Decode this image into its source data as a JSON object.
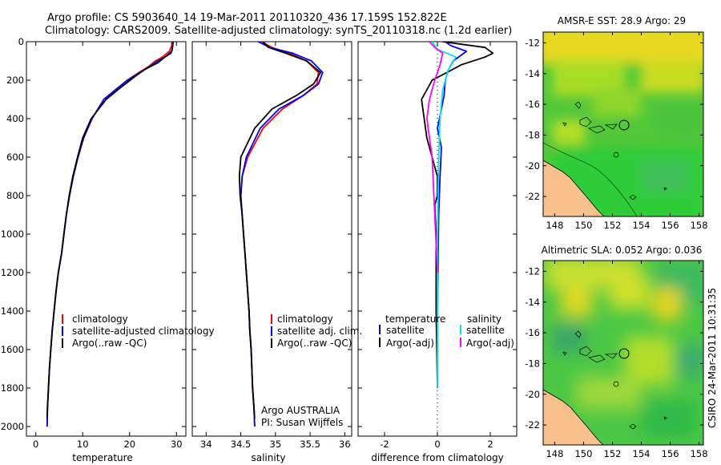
{
  "figure": {
    "title_line1": "Argo profile: CS 5903640_14 19-Mar-2011 20110320_436 17.159S 152.822E",
    "title_line2": "Climatology: CARS2009. Satellite-adjusted climatology: synTS_20110318.nc (1.2d earlier)",
    "side_label": "CSIRO 24-Mar-2011 10:31:35",
    "argo_note_line1": "Argo AUSTRALIA",
    "argo_note_line2": "PI: Susan Wijffels"
  },
  "colors": {
    "climatology": "#ff0000",
    "satellite": "#0000ff",
    "argo": "#000000",
    "sal_satellite": "#00e5e5",
    "sal_argo": "#ff00ff",
    "land": "#f7c08c",
    "coast": "#000000"
  },
  "chart_data": [
    {
      "type": "line",
      "xlabel": "temperature",
      "ylabel": "",
      "xlim": [
        -2,
        32
      ],
      "ylim": [
        2050,
        0
      ],
      "xticks": [
        0,
        10,
        20,
        30
      ],
      "yticks": [
        0,
        200,
        400,
        600,
        800,
        1000,
        1200,
        1400,
        1600,
        1800,
        2000
      ],
      "legend": [
        "climatology",
        "satellite-adjusted climatology",
        "Argo(..raw -QC)"
      ],
      "legend_position": "bottom-right",
      "series": [
        {
          "name": "climatology",
          "color_key": "climatology",
          "x": [
            29.0,
            29.0,
            28.5,
            27.0,
            25.5,
            24.0,
            22.0,
            19.5,
            17.0,
            14.5,
            12.0,
            10.2,
            9.0,
            8.0,
            7.2,
            6.5,
            6.0,
            5.5,
            4.8,
            4.3,
            3.9,
            3.5,
            3.2,
            2.9,
            2.7,
            2.5,
            2.4
          ],
          "y": [
            0,
            20,
            50,
            80,
            100,
            130,
            160,
            200,
            250,
            300,
            400,
            500,
            600,
            700,
            800,
            900,
            1000,
            1100,
            1200,
            1300,
            1400,
            1500,
            1600,
            1700,
            1800,
            1900,
            2000
          ]
        },
        {
          "name": "satellite-adjusted climatology",
          "color_key": "satellite",
          "x": [
            29.3,
            29.2,
            29.0,
            27.6,
            26.0,
            24.3,
            22.2,
            19.6,
            17.0,
            14.5,
            12.0,
            10.2,
            9.0,
            8.0,
            7.2,
            6.5,
            6.0,
            5.5,
            4.8,
            4.3,
            3.9,
            3.5,
            3.2,
            2.9,
            2.7,
            2.5,
            2.4
          ],
          "y": [
            0,
            20,
            50,
            80,
            100,
            130,
            160,
            200,
            250,
            300,
            400,
            500,
            600,
            700,
            800,
            900,
            1000,
            1100,
            1200,
            1300,
            1400,
            1500,
            1600,
            1700,
            1800,
            1900,
            2000
          ]
        },
        {
          "name": "Argo(..raw -QC)",
          "color_key": "argo",
          "x": [
            29.2,
            29.2,
            29.1,
            28.8,
            27.5,
            26.0,
            23.5,
            21.2,
            18.0,
            15.0,
            11.8,
            10.0,
            8.9,
            7.9,
            7.1,
            6.5,
            6.0,
            5.5,
            4.8,
            4.3,
            3.9,
            3.5,
            3.2,
            2.9,
            2.7,
            2.5,
            2.4
          ],
          "y": [
            0,
            20,
            40,
            60,
            80,
            110,
            140,
            180,
            240,
            300,
            400,
            500,
            600,
            700,
            800,
            900,
            1000,
            1100,
            1200,
            1300,
            1400,
            1500,
            1600,
            1700,
            1800,
            1900,
            1960
          ]
        }
      ]
    },
    {
      "type": "line",
      "xlabel": "salinity",
      "ylabel": "",
      "xlim": [
        33.8,
        36.1
      ],
      "ylim": [
        2050,
        0
      ],
      "xticks": [
        34,
        34.5,
        35,
        35.5,
        36
      ],
      "yticks": [
        0,
        200,
        400,
        600,
        800,
        1000,
        1200,
        1400,
        1600,
        1800,
        2000
      ],
      "legend": [
        "climatology",
        "satellite adj. clim.",
        "Argo(..raw -QC)"
      ],
      "legend_position": "bottom-right",
      "series": [
        {
          "name": "climatology",
          "color_key": "climatology",
          "x": [
            34.8,
            34.95,
            35.2,
            35.45,
            35.62,
            35.6,
            35.4,
            35.1,
            34.82,
            34.6,
            34.52,
            34.5,
            34.52,
            34.54,
            34.56,
            34.58,
            34.6,
            34.62,
            34.63,
            34.65,
            34.66,
            34.67,
            34.69,
            34.7
          ],
          "y": [
            0,
            30,
            60,
            100,
            160,
            220,
            280,
            350,
            450,
            600,
            700,
            800,
            900,
            1000,
            1100,
            1200,
            1300,
            1400,
            1500,
            1600,
            1700,
            1800,
            1900,
            2000
          ]
        },
        {
          "name": "satellite adj. clim.",
          "color_key": "satellite",
          "x": [
            34.75,
            34.92,
            35.25,
            35.52,
            35.68,
            35.62,
            35.4,
            35.05,
            34.78,
            34.58,
            34.52,
            34.5,
            34.52,
            34.54,
            34.56,
            34.58,
            34.6,
            34.62,
            34.63,
            34.65,
            34.66,
            34.67,
            34.69,
            34.7
          ],
          "y": [
            0,
            30,
            60,
            100,
            160,
            220,
            280,
            350,
            450,
            600,
            700,
            800,
            900,
            1000,
            1100,
            1200,
            1300,
            1400,
            1500,
            1600,
            1700,
            1800,
            1900,
            2000
          ]
        },
        {
          "name": "Argo(..raw -QC)",
          "color_key": "argo",
          "x": [
            34.82,
            34.9,
            35.15,
            35.45,
            35.65,
            35.55,
            35.3,
            34.95,
            34.7,
            34.5,
            34.48,
            34.49,
            34.52,
            34.54,
            34.56,
            34.58,
            34.6,
            34.62,
            34.63,
            34.65,
            34.66,
            34.67,
            34.69,
            34.7
          ],
          "y": [
            0,
            30,
            60,
            100,
            160,
            220,
            280,
            350,
            450,
            600,
            700,
            800,
            900,
            1000,
            1100,
            1200,
            1300,
            1400,
            1500,
            1600,
            1700,
            1800,
            1900,
            1960
          ]
        }
      ]
    },
    {
      "type": "line",
      "xlabel": "difference from climatology",
      "ylabel": "",
      "xlim": [
        -3,
        3
      ],
      "ylim": [
        2050,
        0
      ],
      "xticks": [
        -2,
        0,
        2
      ],
      "yticks": [
        0,
        200,
        400,
        600,
        800,
        1000,
        1200,
        1400,
        1600,
        1800,
        2000
      ],
      "legend_groups": [
        {
          "heading": "temperature",
          "items": [
            "satellite",
            "Argo(-adj)"
          ]
        },
        {
          "heading": "salinity",
          "items": [
            "satellite",
            "Argo(-adj)"
          ]
        }
      ],
      "legend_position": "bottom",
      "series": [
        {
          "name": "satellite",
          "group": "temperature",
          "color_key": "satellite",
          "x": [
            0.3,
            0.5,
            1.1,
            0.6,
            0.4,
            0.3,
            0.25,
            0.15,
            0.0,
            0.15,
            0.1,
            0.05,
            0.03,
            0.0,
            0.0,
            0.0
          ],
          "y": [
            0,
            20,
            50,
            100,
            150,
            200,
            280,
            350,
            450,
            550,
            700,
            900,
            1100,
            1400,
            1700,
            1800
          ]
        },
        {
          "name": "Argo(-adj)",
          "group": "temperature",
          "color_key": "argo",
          "x": [
            0.2,
            1.8,
            2.1,
            1.8,
            0.9,
            0.5,
            -0.2,
            -0.6,
            -0.5,
            -0.4,
            -0.2,
            0.0,
            0.0,
            -0.1,
            -0.05,
            -0.05,
            0.0
          ],
          "y": [
            0,
            30,
            60,
            80,
            120,
            150,
            200,
            300,
            400,
            500,
            600,
            700,
            800,
            850,
            1000,
            1400,
            1800
          ]
        },
        {
          "name": "satellite",
          "group": "salinity",
          "color_key": "sal_satellite",
          "x": [
            -0.2,
            0.0,
            0.7,
            0.4,
            0.2,
            0.1,
            0.05,
            0.0,
            0.0,
            0.0
          ],
          "y": [
            0,
            40,
            80,
            150,
            250,
            400,
            600,
            1000,
            1500,
            1800
          ]
        },
        {
          "name": "Argo(-adj)",
          "group": "salinity",
          "color_key": "sal_argo",
          "x": [
            -0.3,
            -0.1,
            0.2,
            0.1,
            -0.1,
            -0.3,
            -0.4,
            -0.2,
            -0.1,
            0.0
          ],
          "y": [
            0,
            30,
            60,
            120,
            200,
            300,
            400,
            600,
            900,
            1200
          ]
        }
      ]
    },
    {
      "type": "heatmap",
      "title": "AMSR-E SST: 28.9 Argo: 29",
      "xticks": [
        148,
        150,
        152,
        154,
        156,
        158
      ],
      "yticks": [
        -12,
        -14,
        -16,
        -18,
        -20,
        -22
      ],
      "xlim": [
        147.2,
        158.3
      ],
      "ylim": [
        -23.3,
        -11.3
      ],
      "argo_position": [
        152.822,
        -17.159
      ]
    },
    {
      "type": "heatmap",
      "title": "Altimetric SLA: 0.052 Argo: 0.036",
      "xticks": [
        148,
        150,
        152,
        154,
        156,
        158
      ],
      "yticks": [
        -12,
        -14,
        -16,
        -18,
        -20,
        -22
      ],
      "xlim": [
        147.2,
        158.3
      ],
      "ylim": [
        -23.3,
        -11.3
      ],
      "argo_position": [
        152.822,
        -17.159
      ]
    }
  ]
}
